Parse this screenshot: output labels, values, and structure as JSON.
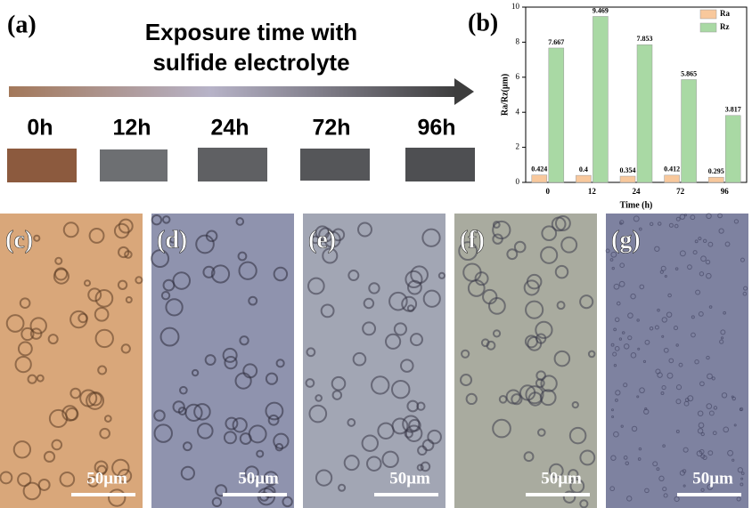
{
  "figure": {
    "panel_a_label": "(a)",
    "heading": [
      "Exposure time with",
      "sulfide electrolyte"
    ],
    "times": [
      "0h",
      "12h",
      "24h",
      "72h",
      "96h"
    ],
    "micrographs": [
      {
        "label": "(c)",
        "scale": "50μm"
      },
      {
        "label": "(d)",
        "scale": "50μm"
      },
      {
        "label": "(e)",
        "scale": "50μm"
      },
      {
        "label": "(f)",
        "scale": "50μm"
      },
      {
        "label": "(g)",
        "scale": "50μm"
      }
    ]
  },
  "chart_data": {
    "type": "bar",
    "panel_label": "(b)",
    "x_label": "Time (h)",
    "y_label": "Ra/Rz(μm)",
    "categories": [
      "0",
      "12",
      "24",
      "72",
      "96"
    ],
    "series": [
      {
        "name": "Ra",
        "color": "#f8c89c",
        "values": [
          0.424,
          0.4,
          0.354,
          0.412,
          0.295
        ]
      },
      {
        "name": "Rz",
        "color": "#a9d9a4",
        "values": [
          7.667,
          9.469,
          7.853,
          5.865,
          3.817
        ]
      }
    ],
    "ylim": [
      0,
      10
    ],
    "yticks": [
      0,
      2,
      4,
      6,
      8,
      10
    ],
    "legend": "upper right"
  }
}
